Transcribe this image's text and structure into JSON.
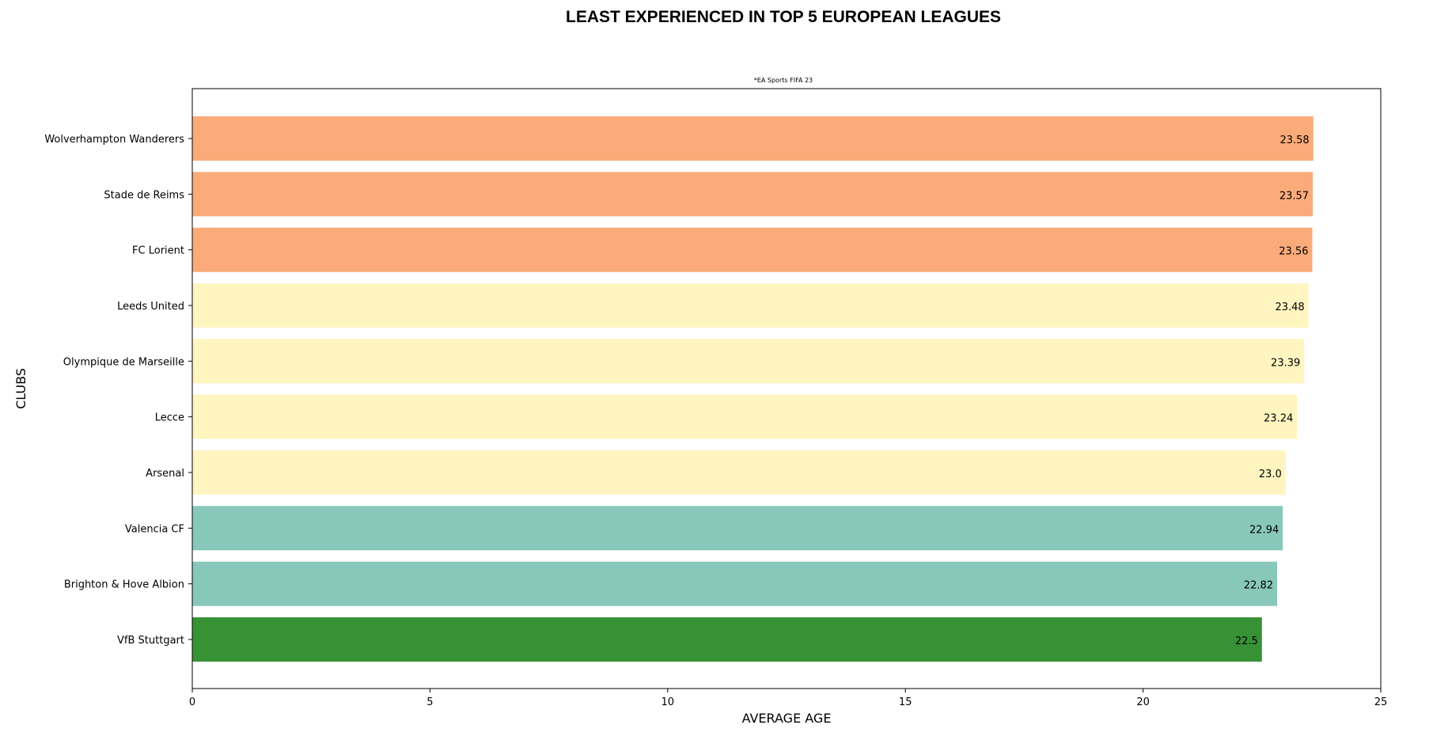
{
  "chart_data": {
    "type": "bar",
    "orientation": "horizontal",
    "title": "LEAST EXPERIENCED IN TOP 5 EUROPEAN LEAGUES",
    "subtitle": "*EA Sports FIFA 23",
    "xlabel": "AVERAGE AGE",
    "ylabel": "CLUBS",
    "xlim": [
      0,
      25
    ],
    "xticks": [
      0,
      5,
      10,
      15,
      20,
      25
    ],
    "grid": false,
    "categories": [
      "Wolverhampton Wanderers",
      "Stade de Reims",
      "FC Lorient",
      "Leeds United",
      "Olympique de Marseille",
      "Lecce",
      "Arsenal",
      "Valencia CF",
      "Brighton & Hove Albion",
      "VfB Stuttgart"
    ],
    "values": [
      23.58,
      23.57,
      23.56,
      23.48,
      23.39,
      23.24,
      23.0,
      22.94,
      22.82,
      22.5
    ],
    "value_labels": [
      "23.58",
      "23.57",
      "23.56",
      "23.48",
      "23.39",
      "23.24",
      "23.0",
      "22.94",
      "22.82",
      "22.5"
    ],
    "bar_colors": [
      "#fbab79",
      "#fbab79",
      "#fbab79",
      "#fff5c1",
      "#fff5c1",
      "#fff5c1",
      "#fff5c1",
      "#88c8bb",
      "#88c8bb",
      "#379236"
    ]
  }
}
